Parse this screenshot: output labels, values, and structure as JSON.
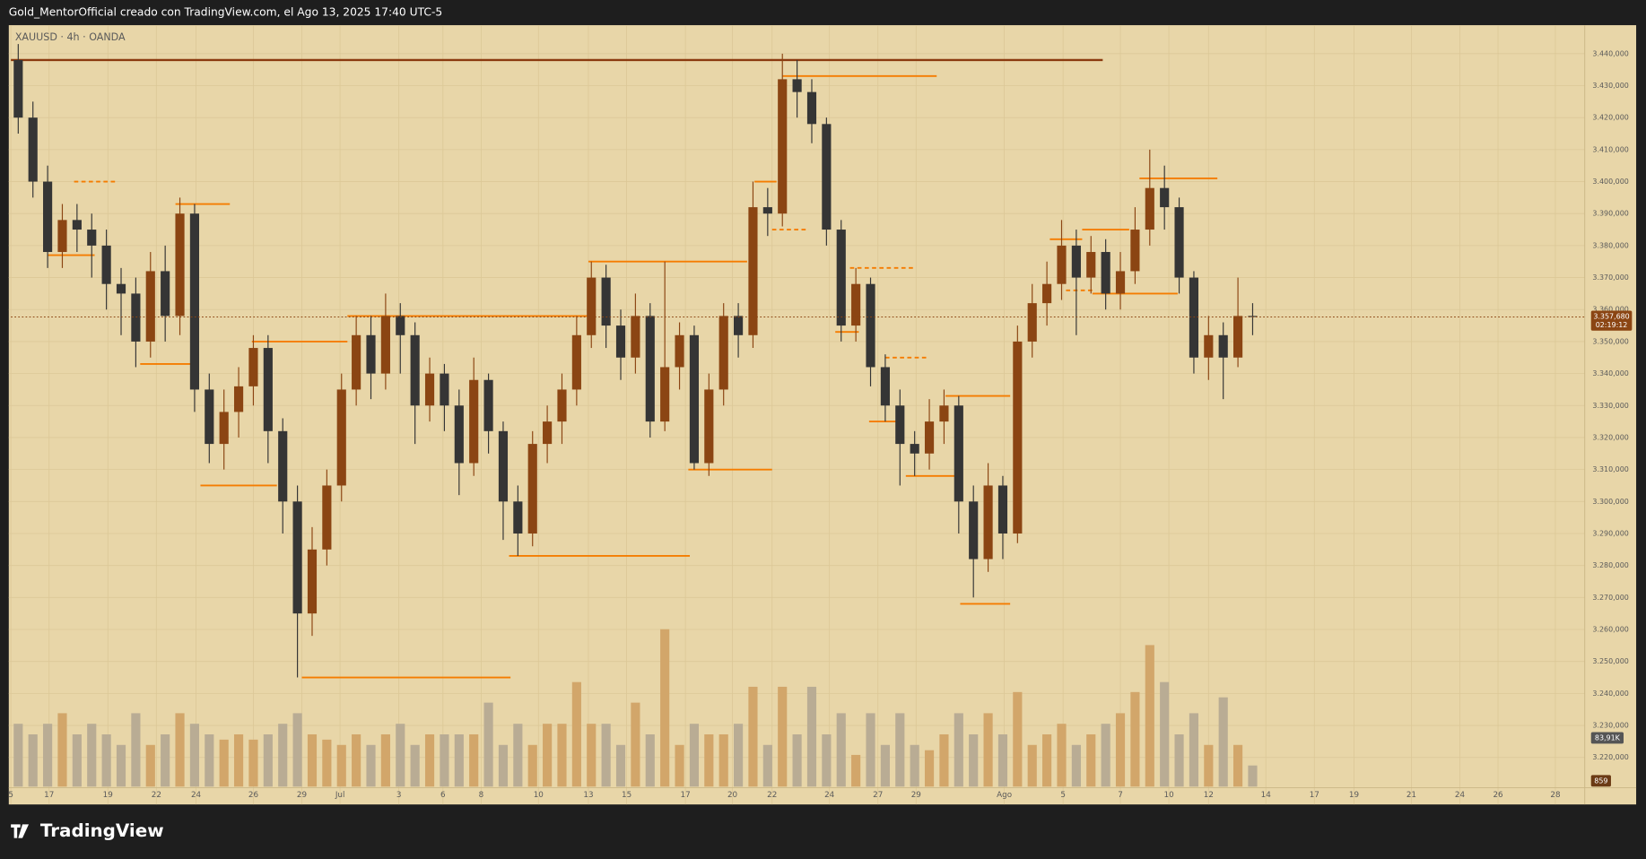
{
  "header": "Gold_MentorOfficial creado con TradingView.com, el Ago 13, 2025 17:40 UTC-5",
  "brand": "TradingView",
  "chart_data": {
    "type": "candlestick",
    "symbol": "XAUUSD · 4h · OANDA",
    "background": "#e8d6a8",
    "up_color": "#8b4513",
    "down_color": "#353535",
    "up_volume_color": "#d2a66a",
    "down_volume_color": "#b9ac94",
    "level_color": "#f57c00",
    "grid": true,
    "xlim": [
      0,
      107.1
    ],
    "ylim": [
      3205.3,
      3448.9
    ],
    "vlim": [
      0,
      400
    ],
    "xticks": [
      {
        "value": 0,
        "label": "5"
      },
      {
        "value": 2.6,
        "label": "17"
      },
      {
        "value": 6.6,
        "label": "19"
      },
      {
        "value": 9.9,
        "label": "22"
      },
      {
        "value": 12.6,
        "label": "24"
      },
      {
        "value": 16.5,
        "label": "26"
      },
      {
        "value": 19.8,
        "label": "29"
      },
      {
        "value": 22.4,
        "label": "Jul"
      },
      {
        "value": 26.4,
        "label": "3"
      },
      {
        "value": 29.4,
        "label": "6"
      },
      {
        "value": 32,
        "label": "8"
      },
      {
        "value": 35.9,
        "label": "10"
      },
      {
        "value": 39.3,
        "label": "13"
      },
      {
        "value": 41.9,
        "label": "15"
      },
      {
        "value": 45.9,
        "label": "17"
      },
      {
        "value": 49.1,
        "label": "20"
      },
      {
        "value": 51.8,
        "label": "22"
      },
      {
        "value": 55.7,
        "label": "24"
      },
      {
        "value": 59,
        "label": "27"
      },
      {
        "value": 61.6,
        "label": "29"
      },
      {
        "value": 67.6,
        "label": "Ago"
      },
      {
        "value": 71.6,
        "label": "5"
      },
      {
        "value": 75.5,
        "label": "7"
      },
      {
        "value": 78.8,
        "label": "10"
      },
      {
        "value": 81.5,
        "label": "12"
      },
      {
        "value": 85.4,
        "label": "14"
      },
      {
        "value": 88.7,
        "label": "17"
      },
      {
        "value": 91.4,
        "label": "19"
      },
      {
        "value": 95.3,
        "label": "21"
      },
      {
        "value": 98.6,
        "label": "24"
      },
      {
        "value": 101.2,
        "label": "26"
      },
      {
        "value": 105.1,
        "label": "28"
      }
    ],
    "yticks": [
      {
        "value": 3440,
        "label": "3.440,000"
      },
      {
        "value": 3430,
        "label": "3.430,000"
      },
      {
        "value": 3420,
        "label": "3.420,000"
      },
      {
        "value": 3410,
        "label": "3.410,000"
      },
      {
        "value": 3400,
        "label": "3.400,000"
      },
      {
        "value": 3390,
        "label": "3.390,000"
      },
      {
        "value": 3380,
        "label": "3.380,000"
      },
      {
        "value": 3370,
        "label": "3.370,000"
      },
      {
        "value": 3360,
        "label": "3.360,000"
      },
      {
        "value": 3350,
        "label": "3.350,000"
      },
      {
        "value": 3340,
        "label": "3.340,000"
      },
      {
        "value": 3330,
        "label": "3.330,000"
      },
      {
        "value": 3320,
        "label": "3.320,000"
      },
      {
        "value": 3310,
        "label": "3.310,000"
      },
      {
        "value": 3300,
        "label": "3.300,000"
      },
      {
        "value": 3290,
        "label": "3.290,000"
      },
      {
        "value": 3280,
        "label": "3.280,000"
      },
      {
        "value": 3270,
        "label": "3.270,000"
      },
      {
        "value": 3260,
        "label": "3.260,000"
      },
      {
        "value": 3250,
        "label": "3.250,000"
      },
      {
        "value": 3240,
        "label": "3.240,000"
      },
      {
        "value": 3230,
        "label": "3.230,000"
      },
      {
        "value": 3220,
        "label": "3.220,000"
      }
    ],
    "open": [
      3438,
      3420,
      3400,
      3378,
      3388,
      3385,
      3380,
      3368,
      3365,
      3350,
      3372,
      3358,
      3390,
      3335,
      3318,
      3328,
      3336,
      3348,
      3322,
      3300,
      3265,
      3285,
      3305,
      3335,
      3352,
      3340,
      3358,
      3352,
      3330,
      3340,
      3330,
      3312,
      3338,
      3322,
      3300,
      3290,
      3318,
      3325,
      3335,
      3352,
      3370,
      3355,
      3345,
      3358,
      3325,
      3342,
      3352,
      3312,
      3335,
      3358,
      3352,
      3392,
      3390,
      3432,
      3428,
      3418,
      3385,
      3355,
      3368,
      3342,
      3330,
      3318,
      3315,
      3325,
      3330,
      3300,
      3282,
      3305,
      3290,
      3350,
      3362,
      3368,
      3380,
      3370,
      3378,
      3365,
      3372,
      3385,
      3398,
      3392,
      3370,
      3345,
      3352,
      3345,
      3358
    ],
    "high": [
      3443,
      3425,
      3405,
      3393,
      3393,
      3390,
      3385,
      3373,
      3370,
      3378,
      3380,
      3395,
      3393,
      3340,
      3335,
      3342,
      3352,
      3352,
      3326,
      3305,
      3292,
      3310,
      3340,
      3358,
      3358,
      3365,
      3362,
      3356,
      3345,
      3343,
      3335,
      3345,
      3340,
      3325,
      3305,
      3322,
      3330,
      3340,
      3358,
      3375,
      3374,
      3360,
      3365,
      3362,
      3375,
      3356,
      3355,
      3340,
      3362,
      3362,
      3400,
      3398,
      3440,
      3438,
      3432,
      3420,
      3388,
      3373,
      3370,
      3346,
      3335,
      3322,
      3332,
      3335,
      3333,
      3305,
      3312,
      3308,
      3355,
      3368,
      3375,
      3388,
      3385,
      3383,
      3382,
      3378,
      3392,
      3410,
      3405,
      3395,
      3372,
      3358,
      3356,
      3370,
      3362
    ],
    "low": [
      3415,
      3395,
      3373,
      3373,
      3378,
      3370,
      3360,
      3352,
      3342,
      3345,
      3350,
      3352,
      3328,
      3312,
      3310,
      3320,
      3330,
      3312,
      3290,
      3245,
      3258,
      3280,
      3300,
      3330,
      3332,
      3335,
      3340,
      3318,
      3325,
      3322,
      3302,
      3308,
      3315,
      3288,
      3283,
      3286,
      3312,
      3318,
      3330,
      3348,
      3348,
      3338,
      3340,
      3320,
      3322,
      3335,
      3310,
      3308,
      3330,
      3345,
      3348,
      3383,
      3386,
      3420,
      3412,
      3380,
      3350,
      3350,
      3336,
      3325,
      3305,
      3308,
      3310,
      3318,
      3290,
      3270,
      3278,
      3282,
      3287,
      3345,
      3355,
      3363,
      3352,
      3365,
      3360,
      3360,
      3368,
      3380,
      3385,
      3365,
      3340,
      3338,
      3332,
      3342,
      3352
    ],
    "close": [
      3420,
      3400,
      3378,
      3388,
      3385,
      3380,
      3368,
      3365,
      3350,
      3372,
      3358,
      3390,
      3335,
      3318,
      3328,
      3336,
      3348,
      3322,
      3300,
      3265,
      3285,
      3305,
      3335,
      3352,
      3340,
      3358,
      3352,
      3330,
      3340,
      3330,
      3312,
      3338,
      3322,
      3300,
      3290,
      3318,
      3325,
      3335,
      3352,
      3370,
      3355,
      3345,
      3358,
      3325,
      3342,
      3352,
      3312,
      3335,
      3358,
      3352,
      3392,
      3390,
      3432,
      3428,
      3418,
      3385,
      3355,
      3368,
      3342,
      3330,
      3318,
      3315,
      3325,
      3330,
      3300,
      3282,
      3305,
      3290,
      3350,
      3362,
      3368,
      3380,
      3370,
      3378,
      3365,
      3372,
      3385,
      3398,
      3392,
      3370,
      3345,
      3352,
      3345,
      3358,
      3357.68
    ],
    "volume": [
      107,
      89,
      107,
      125,
      89,
      107,
      89,
      71,
      125,
      71,
      89,
      125,
      107,
      89,
      80,
      89,
      80,
      89,
      107,
      125,
      89,
      80,
      71,
      89,
      71,
      89,
      107,
      71,
      89,
      89,
      89,
      89,
      143,
      71,
      107,
      71,
      107,
      107,
      178,
      107,
      107,
      71,
      143,
      89,
      268,
      71,
      107,
      89,
      89,
      107,
      170,
      71,
      170,
      89,
      170,
      89,
      125,
      54,
      125,
      71,
      125,
      71,
      62,
      89,
      125,
      89,
      125,
      89,
      161,
      71,
      89,
      107,
      71,
      89,
      107,
      125,
      161,
      241,
      178,
      89,
      125,
      71,
      152,
      71,
      36
    ],
    "levels": [
      {
        "value": 3438,
        "from": 0,
        "to": 74.3,
        "color": "#8b3a0f"
      },
      {
        "value": 3433,
        "from": 52.5,
        "to": 63
      },
      {
        "value": 3400,
        "from": 4.3,
        "to": 7.3,
        "dashed": true
      },
      {
        "value": 3393,
        "from": 11.2,
        "to": 14.9
      },
      {
        "value": 3377,
        "from": 2.5,
        "to": 5.7
      },
      {
        "value": 3343,
        "from": 8.8,
        "to": 12.5
      },
      {
        "value": 3350,
        "from": 16.4,
        "to": 22.9
      },
      {
        "value": 3358,
        "from": 22.9,
        "to": 39.3
      },
      {
        "value": 3375,
        "from": 39.3,
        "to": 50.1
      },
      {
        "value": 3305,
        "from": 12.9,
        "to": 18.1
      },
      {
        "value": 3245,
        "from": 19.8,
        "to": 34
      },
      {
        "value": 3283,
        "from": 33.9,
        "to": 46.2
      },
      {
        "value": 3310,
        "from": 46.1,
        "to": 51.8
      },
      {
        "value": 3400,
        "from": 50.6,
        "to": 52.1
      },
      {
        "value": 3385,
        "from": 51.8,
        "to": 54.3,
        "dashed": true
      },
      {
        "value": 3373,
        "from": 57.1,
        "to": 61.4,
        "dashed": true
      },
      {
        "value": 3353,
        "from": 56.1,
        "to": 57.7
      },
      {
        "value": 3345,
        "from": 59.5,
        "to": 62.4,
        "dashed": true
      },
      {
        "value": 3325,
        "from": 58.4,
        "to": 60.4
      },
      {
        "value": 3308,
        "from": 60.9,
        "to": 64.3
      },
      {
        "value": 3333,
        "from": 63.6,
        "to": 68
      },
      {
        "value": 3268,
        "from": 64.6,
        "to": 68
      },
      {
        "value": 3382,
        "from": 70.7,
        "to": 72.9
      },
      {
        "value": 3385,
        "from": 72.9,
        "to": 76.1
      },
      {
        "value": 3365,
        "from": 73.6,
        "to": 79.4
      },
      {
        "value": 3366,
        "from": 71.8,
        "to": 73.6,
        "dashed": true
      },
      {
        "value": 3401,
        "from": 76.8,
        "to": 82.1
      }
    ],
    "last_price": 3357.68,
    "last_price_label": "3.357,680",
    "timer": "02:19:12",
    "volume_label": "83,91K",
    "badge": "859"
  }
}
